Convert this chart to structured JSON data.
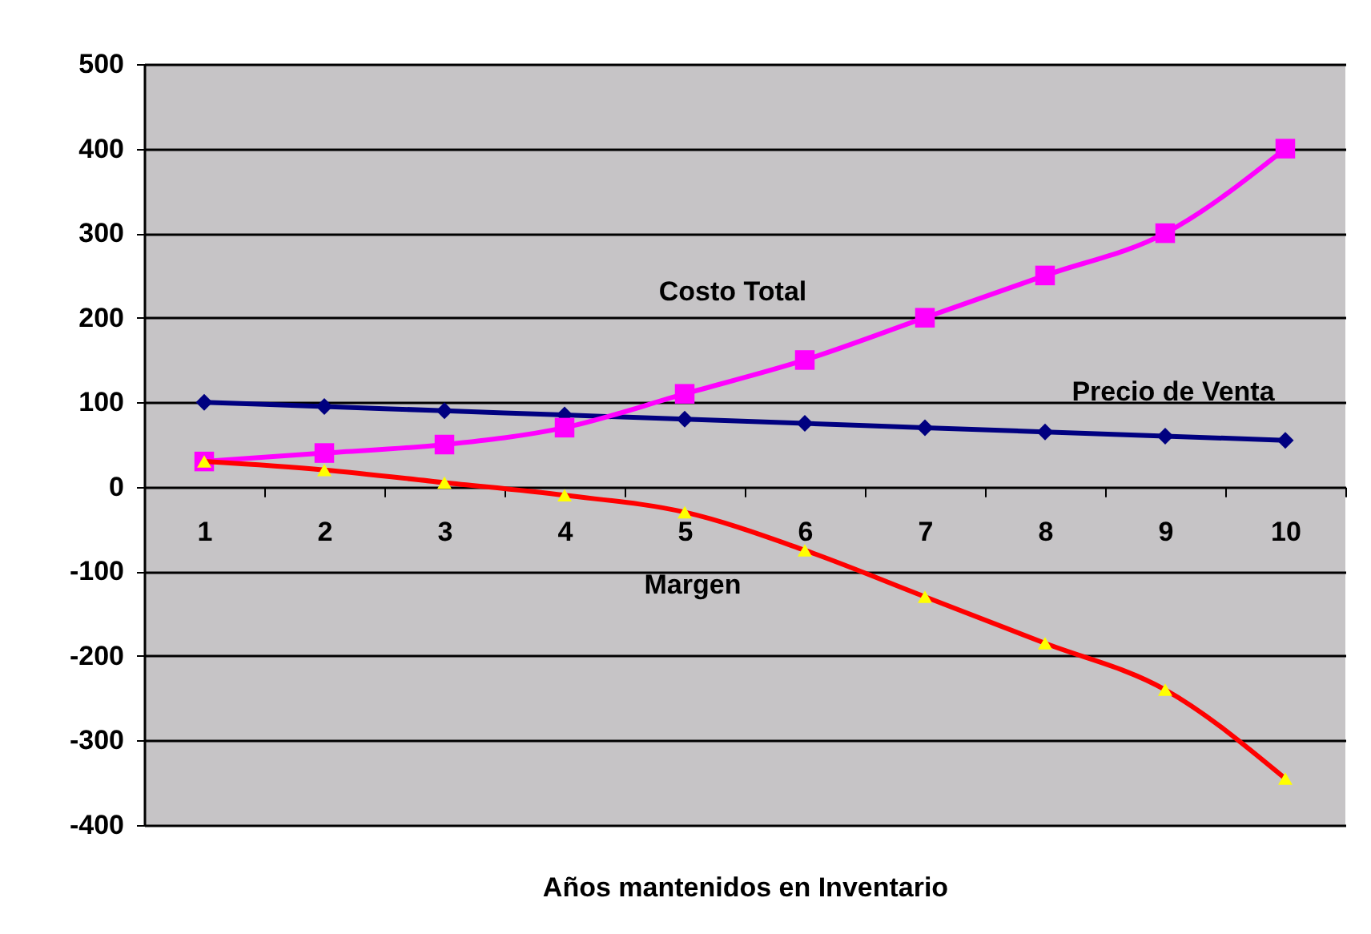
{
  "chart_data": {
    "type": "line",
    "xlabel": "Años mantenidos en Inventario",
    "categories": [
      "1",
      "2",
      "3",
      "4",
      "5",
      "6",
      "7",
      "8",
      "9",
      "10"
    ],
    "series": [
      {
        "name": "Precio de Venta",
        "color": "#000080",
        "marker": "diamond",
        "values": [
          100,
          95,
          90,
          85,
          80,
          75,
          70,
          65,
          60,
          55
        ]
      },
      {
        "name": "Costo Total",
        "color": "#ff00ff",
        "marker": "square",
        "values": [
          30,
          40,
          50,
          70,
          110,
          150,
          200,
          250,
          300,
          400
        ]
      },
      {
        "name": "Margen",
        "color": "#ff0000",
        "marker": "triangle",
        "colors": [
          "#ffff00",
          "#ffff00",
          "#ffff00",
          "#ffff00",
          "#ffff00",
          "#ffff00",
          "#ffff00",
          "#ffff00",
          "#ffff00",
          "#ffff00"
        ],
        "values": [
          30,
          20,
          5,
          -10,
          -30,
          -75,
          -130,
          -185,
          -240,
          -345
        ]
      }
    ],
    "ylim": [
      -400,
      500
    ],
    "yticks": [
      -400,
      -300,
      -200,
      -100,
      0,
      100,
      200,
      300,
      400,
      500
    ],
    "grid": "y"
  }
}
